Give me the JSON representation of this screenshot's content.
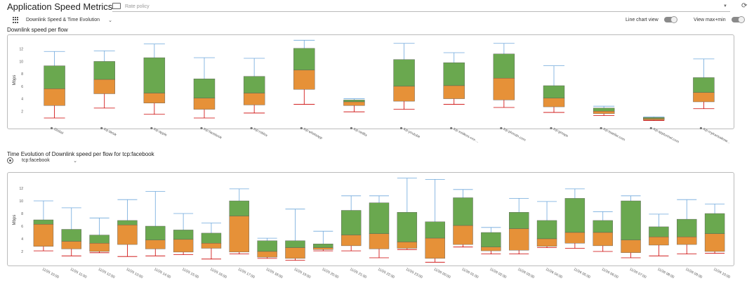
{
  "app": {
    "title": "Application Speed Metrics",
    "view_selector": "Downlink Speed & Time Evolution",
    "policy_placeholder": "Rate policy"
  },
  "toggles": {
    "line_chart_label": "Line chart view",
    "maxmin_label": "View max+min"
  },
  "sections": {
    "top_title": "Downlink speed per flow",
    "bottom_title": "Time Evolution of Downlink speed per flow for tcp:facebook",
    "flow_select_value": "tcp:facebook"
  },
  "colors": {
    "upper_box": "#6aa84f",
    "lower_box": "#e69138",
    "whisker_top": "#6fa8dc",
    "whisker_bottom": "#cc0000"
  },
  "chart_data": [
    {
      "type": "box",
      "ylabel": "Mbps",
      "yticks": [
        2,
        4,
        6,
        8,
        10,
        12
      ],
      "ylim": [
        0,
        14
      ],
      "categories": [
        "Global",
        "tcp:tiktok",
        "tcp:apple",
        "tcp:facebook",
        "tcp:roblox",
        "tcp:whatsapp",
        "tcp:netflix",
        "tcp:youtube",
        "tcp:xvideos-xxx-...",
        "tcp:phncdn.com",
        "tcp:gmaps",
        "tcp:tsseller.com",
        "tcp:apptunnel.com",
        "tcp:mytransalesw..."
      ],
      "series": [
        {
          "category": "Global",
          "min": 0.9,
          "q1": 2.9,
          "median": 5.6,
          "q3": 9.3,
          "max": 11.6
        },
        {
          "category": "tcp:tiktok",
          "min": 2.5,
          "q1": 4.8,
          "median": 7.1,
          "q3": 10.0,
          "max": 11.7
        },
        {
          "category": "tcp:apple",
          "min": 1.5,
          "q1": 3.3,
          "median": 4.9,
          "q3": 10.6,
          "max": 12.8
        },
        {
          "category": "tcp:facebook",
          "min": 0.9,
          "q1": 2.3,
          "median": 4.1,
          "q3": 7.2,
          "max": 10.6
        },
        {
          "category": "tcp:roblox",
          "min": 1.7,
          "q1": 3.0,
          "median": 4.9,
          "q3": 7.6,
          "max": 10.5
        },
        {
          "category": "tcp:whatsapp",
          "min": 3.1,
          "q1": 5.5,
          "median": 8.6,
          "q3": 12.1,
          "max": 13.4
        },
        {
          "category": "tcp:netflix",
          "min": 1.9,
          "q1": 2.9,
          "median": 3.5,
          "q3": 3.8,
          "max": 4.0
        },
        {
          "category": "tcp:youtube",
          "min": 2.3,
          "q1": 3.6,
          "median": 6.0,
          "q3": 10.3,
          "max": 12.9
        },
        {
          "category": "tcp:xvideos-xxx-...",
          "min": 3.1,
          "q1": 4.0,
          "median": 6.1,
          "q3": 9.8,
          "max": 11.4
        },
        {
          "category": "tcp:phncdn.com",
          "min": 2.6,
          "q1": 3.8,
          "median": 7.3,
          "q3": 11.2,
          "max": 12.9
        },
        {
          "category": "tcp:gmaps",
          "min": 1.8,
          "q1": 2.7,
          "median": 4.1,
          "q3": 6.1,
          "max": 9.3
        },
        {
          "category": "tcp:tsseller.com",
          "min": 1.3,
          "q1": 1.6,
          "median": 2.0,
          "q3": 2.5,
          "max": 2.8
        },
        {
          "category": "tcp:apptunnel.com",
          "min": 0.5,
          "q1": 0.6,
          "median": 0.8,
          "q3": 1.0,
          "max": 1.1
        },
        {
          "category": "tcp:mytransalesw...",
          "min": 2.4,
          "q1": 3.5,
          "median": 5.0,
          "q3": 7.4,
          "max": 10.4
        }
      ]
    },
    {
      "type": "box",
      "ylabel": "Mbps",
      "yticks": [
        2,
        4,
        6,
        8,
        10,
        12
      ],
      "ylim": [
        0,
        14
      ],
      "categories": [
        "11/25 10:00",
        "11/25 11:00",
        "11/25 12:00",
        "11/25 13:00",
        "11/25 14:00",
        "11/25 15:00",
        "11/25 16:00",
        "11/25 17:00",
        "11/25 18:00",
        "11/25 19:00",
        "11/25 20:00",
        "11/25 21:00",
        "11/25 22:00",
        "11/25 23:00",
        "11/26 00:00",
        "11/26 01:00",
        "11/26 02:00",
        "11/26 03:00",
        "11/26 04:00",
        "11/26 05:00",
        "11/26 06:00",
        "11/26 07:00",
        "11/26 08:00",
        "11/26 09:00",
        "11/26 10:00"
      ],
      "series": [
        {
          "category": "11/25 10:00",
          "min": 2.1,
          "q1": 2.8,
          "median": 6.3,
          "q3": 7.0,
          "max": 10.0
        },
        {
          "category": "11/25 11:00",
          "min": 1.3,
          "q1": 2.4,
          "median": 3.6,
          "q3": 5.5,
          "max": 8.9
        },
        {
          "category": "11/25 12:00",
          "min": 1.8,
          "q1": 2.0,
          "median": 3.3,
          "q3": 4.6,
          "max": 7.3
        },
        {
          "category": "11/25 13:00",
          "min": 1.2,
          "q1": 3.1,
          "median": 6.2,
          "q3": 6.9,
          "max": 10.2
        },
        {
          "category": "11/25 14:00",
          "min": 1.3,
          "q1": 2.4,
          "median": 3.8,
          "q3": 6.0,
          "max": 11.5
        },
        {
          "category": "11/25 15:00",
          "min": 1.5,
          "q1": 1.9,
          "median": 3.9,
          "q3": 5.4,
          "max": 8.0
        },
        {
          "category": "11/25 16:00",
          "min": 0.8,
          "q1": 2.5,
          "median": 3.3,
          "q3": 4.9,
          "max": 6.5
        },
        {
          "category": "11/25 17:00",
          "min": 1.6,
          "q1": 1.9,
          "median": 7.6,
          "q3": 10.0,
          "max": 11.9
        },
        {
          "category": "11/25 18:00",
          "min": 0.9,
          "q1": 1.1,
          "median": 2.0,
          "q3": 3.7,
          "max": 4.1
        },
        {
          "category": "11/25 19:00",
          "min": 0.6,
          "q1": 0.9,
          "median": 2.6,
          "q3": 3.7,
          "max": 8.7
        },
        {
          "category": "11/25 20:00",
          "min": 2.1,
          "q1": 2.3,
          "median": 2.6,
          "q3": 3.2,
          "max": 5.2
        },
        {
          "category": "11/25 21:00",
          "min": 2.1,
          "q1": 2.9,
          "median": 4.6,
          "q3": 8.5,
          "max": 10.8
        },
        {
          "category": "11/25 22:00",
          "min": 1.0,
          "q1": 2.4,
          "median": 4.8,
          "q3": 9.7,
          "max": 10.8
        },
        {
          "category": "11/25 23:00",
          "min": 2.3,
          "q1": 2.5,
          "median": 3.5,
          "q3": 8.2,
          "max": 13.6
        },
        {
          "category": "11/26 00:00",
          "min": 0.3,
          "q1": 0.9,
          "median": 4.1,
          "q3": 6.7,
          "max": 13.4
        },
        {
          "category": "11/26 01:00",
          "min": 2.7,
          "q1": 3.1,
          "median": 6.1,
          "q3": 10.5,
          "max": 11.8
        },
        {
          "category": "11/26 02:00",
          "min": 1.6,
          "q1": 2.1,
          "median": 2.7,
          "q3": 5.0,
          "max": 5.8
        },
        {
          "category": "11/26 03:00",
          "min": 1.6,
          "q1": 2.2,
          "median": 5.6,
          "q3": 8.2,
          "max": 10.4
        },
        {
          "category": "11/26 04:00",
          "min": 2.6,
          "q1": 2.8,
          "median": 4.0,
          "q3": 6.9,
          "max": 9.9
        },
        {
          "category": "11/26 05:00",
          "min": 2.5,
          "q1": 3.3,
          "median": 5.0,
          "q3": 10.4,
          "max": 11.9
        },
        {
          "category": "11/26 06:00",
          "min": 2.0,
          "q1": 2.9,
          "median": 5.0,
          "q3": 6.9,
          "max": 8.3
        },
        {
          "category": "11/26 07:00",
          "min": 1.0,
          "q1": 1.8,
          "median": 3.8,
          "q3": 10.0,
          "max": 10.8
        },
        {
          "category": "11/26 08:00",
          "min": 1.3,
          "q1": 3.0,
          "median": 4.3,
          "q3": 5.9,
          "max": 7.9
        },
        {
          "category": "11/26 09:00",
          "min": 1.6,
          "q1": 3.1,
          "median": 4.3,
          "q3": 7.1,
          "max": 10.2
        },
        {
          "category": "11/26 10:00",
          "min": 1.7,
          "q1": 2.0,
          "median": 4.8,
          "q3": 8.0,
          "max": 9.5
        }
      ]
    }
  ]
}
